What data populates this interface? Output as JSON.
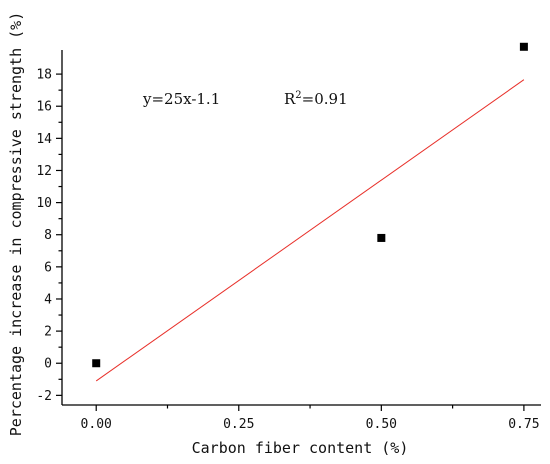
{
  "chart_data": {
    "type": "scatter",
    "xlabel": "Carbon fiber content (%)",
    "ylabel": "Percentage increase in compressive strength (%)",
    "xlim": [
      -0.06,
      0.78
    ],
    "ylim": [
      -2.6,
      19.5
    ],
    "x_ticks": [
      0.0,
      0.25,
      0.5,
      0.75
    ],
    "x_tick_labels": [
      "0.00",
      "0.25",
      "0.50",
      "0.75"
    ],
    "y_ticks": [
      -2,
      0,
      2,
      4,
      6,
      8,
      10,
      12,
      14,
      16,
      18
    ],
    "y_tick_labels": [
      "-2",
      "0",
      "2",
      "4",
      "6",
      "8",
      "10",
      "12",
      "14",
      "16",
      "18"
    ],
    "series": [
      {
        "x": [
          0.0,
          0.5,
          0.75
        ],
        "y": [
          0.0,
          7.8,
          19.7
        ],
        "marker": "square",
        "color": "#000000"
      }
    ],
    "fit_line": {
      "slope": 25,
      "intercept": -1.1,
      "x_range": [
        0.0,
        0.75
      ],
      "color": "#e8302a"
    },
    "annotations": {
      "equation": "y=25x-1.1",
      "r2_prefix": "R",
      "r2_sup": "2",
      "r2_value": "=0.91"
    },
    "grid": false
  }
}
